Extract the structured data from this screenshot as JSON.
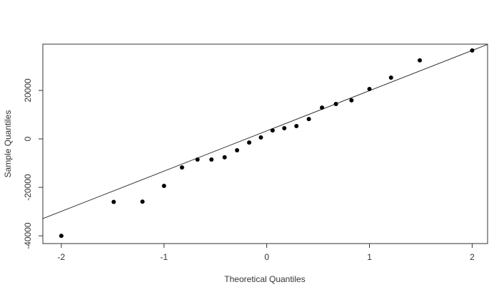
{
  "chart_data": {
    "type": "scatter",
    "x_label": "Theoretical Quantiles",
    "y_label": "Sample Quantiles",
    "x": [
      -2.0,
      -1.49,
      -1.21,
      -1.0,
      -0.825,
      -0.674,
      -0.538,
      -0.41,
      -0.289,
      -0.171,
      -0.057,
      0.057,
      0.171,
      0.289,
      0.41,
      0.538,
      0.674,
      0.825,
      1.0,
      1.21,
      1.49,
      2.0
    ],
    "values": [
      -40000,
      -26000,
      -25900,
      -19400,
      -11800,
      -8500,
      -8500,
      -7600,
      -4700,
      -1500,
      600,
      3500,
      4400,
      5300,
      8200,
      12900,
      14400,
      15900,
      20600,
      25300,
      32400,
      36500
    ],
    "color": "#000000",
    "reference_line": {
      "intercept": 3300,
      "slope": 16600,
      "color": "#333333"
    },
    "xlim": [
      -2.18,
      2.15
    ],
    "xticks": [
      -2,
      -1,
      0,
      1,
      2
    ],
    "ylim": [
      -43200,
      39100
    ],
    "yticks": [
      -40000,
      -20000,
      0,
      20000
    ]
  }
}
